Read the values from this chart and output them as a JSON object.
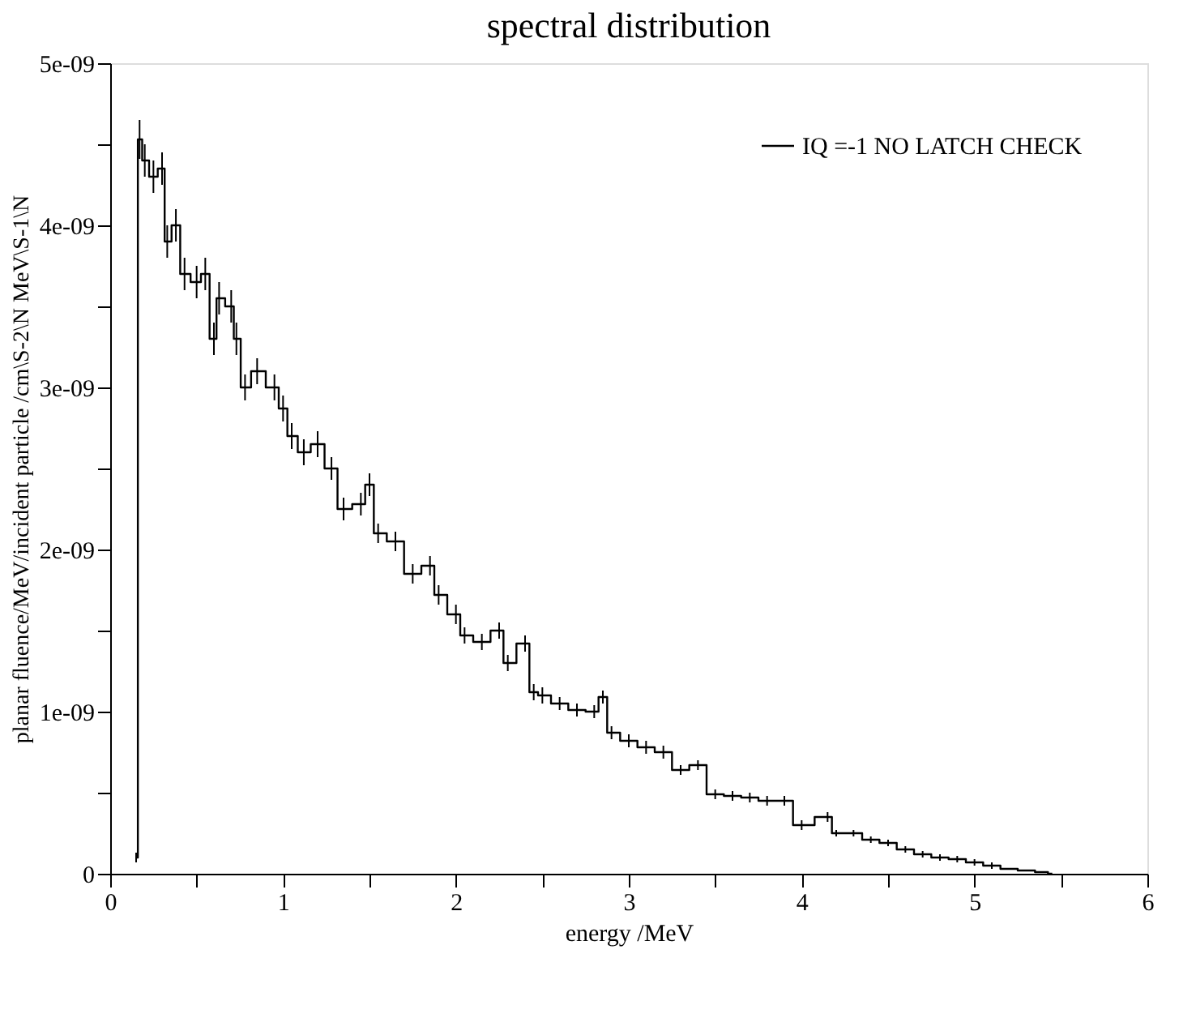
{
  "chart_data": {
    "type": "step",
    "title": "spectral distribution",
    "xlabel": "energy /MeV",
    "ylabel": "planar fluence/MeV/incident particle /cm\\S-2\\N MeV\\S-1\\N",
    "x": [
      0.15,
      0.17,
      0.2,
      0.25,
      0.3,
      0.33,
      0.38,
      0.43,
      0.5,
      0.55,
      0.6,
      0.63,
      0.7,
      0.73,
      0.78,
      0.85,
      0.95,
      1.0,
      1.05,
      1.12,
      1.2,
      1.28,
      1.35,
      1.45,
      1.5,
      1.55,
      1.65,
      1.75,
      1.85,
      1.9,
      2.0,
      2.05,
      2.15,
      2.25,
      2.3,
      2.4,
      2.45,
      2.5,
      2.6,
      2.7,
      2.8,
      2.85,
      2.9,
      3.0,
      3.1,
      3.2,
      3.3,
      3.4,
      3.5,
      3.6,
      3.7,
      3.8,
      3.9,
      4.0,
      4.15,
      4.2,
      4.3,
      4.4,
      4.5,
      4.6,
      4.7,
      4.8,
      4.9,
      5.0,
      5.1,
      5.2,
      5.3,
      5.4,
      5.45
    ],
    "series": [
      {
        "name": "IQ =-1 NO LATCH CHECK",
        "color": "#000000",
        "values": [
          1e-10,
          4.53e-09,
          4.4e-09,
          4.3e-09,
          4.35e-09,
          3.9e-09,
          4e-09,
          3.7e-09,
          3.65e-09,
          3.7e-09,
          3.3e-09,
          3.55e-09,
          3.5e-09,
          3.3e-09,
          3e-09,
          3.1e-09,
          3e-09,
          2.87e-09,
          2.7e-09,
          2.6e-09,
          2.65e-09,
          2.5e-09,
          2.25e-09,
          2.28e-09,
          2.4e-09,
          2.1e-09,
          2.05e-09,
          1.85e-09,
          1.9e-09,
          1.72e-09,
          1.6e-09,
          1.47e-09,
          1.43e-09,
          1.5e-09,
          1.3e-09,
          1.42e-09,
          1.12e-09,
          1.1e-09,
          1.05e-09,
          1.01e-09,
          1e-09,
          1.09e-09,
          8.7e-10,
          8.2e-10,
          7.8e-10,
          7.5e-10,
          6.4e-10,
          6.7e-10,
          4.9e-10,
          4.8e-10,
          4.7e-10,
          4.5e-10,
          4.5e-10,
          3e-10,
          3.5e-10,
          2.5e-10,
          2.5e-10,
          2.1e-10,
          1.9e-10,
          1.5e-10,
          1.2e-10,
          1e-10,
          9e-11,
          7e-11,
          5e-11,
          3e-11,
          2e-11,
          1e-11,
          0
        ],
        "errors": [
          3e-11,
          1.2e-10,
          1e-10,
          1e-10,
          1e-10,
          1e-10,
          1e-10,
          1e-10,
          1e-10,
          1e-10,
          1e-10,
          1e-10,
          1e-10,
          1e-10,
          8e-11,
          8e-11,
          8e-11,
          8e-11,
          8e-11,
          8e-11,
          8e-11,
          7e-11,
          7e-11,
          7e-11,
          7e-11,
          6e-11,
          6e-11,
          6e-11,
          6e-11,
          6e-11,
          6e-11,
          5e-11,
          5e-11,
          5e-11,
          5e-11,
          5e-11,
          5e-11,
          5e-11,
          4e-11,
          4e-11,
          4e-11,
          4e-11,
          4e-11,
          4e-11,
          4e-11,
          4e-11,
          3e-11,
          3e-11,
          3e-11,
          3e-11,
          3e-11,
          3e-11,
          3e-11,
          3e-11,
          3e-11,
          2e-11,
          2e-11,
          2e-11,
          2e-11,
          2e-11,
          2e-11,
          2e-11,
          2e-11,
          2e-11,
          2e-11,
          null,
          null,
          null,
          null
        ]
      }
    ],
    "xlim": [
      0,
      6
    ],
    "xticks": [
      0,
      {
        "value": 0.5,
        "label": null
      },
      1,
      {
        "value": 1.5,
        "label": null
      },
      2,
      {
        "value": 2.5,
        "label": null
      },
      3,
      {
        "value": 3.5,
        "label": null
      },
      4,
      {
        "value": 4.5,
        "label": null
      },
      5,
      {
        "value": 5.5,
        "label": null
      },
      6
    ],
    "ylim": [
      0,
      5e-09
    ],
    "yticks": [
      0,
      {
        "value": 5e-10,
        "label": null
      },
      {
        "value": 1e-09,
        "label": "1e-09"
      },
      {
        "value": 1.5e-09,
        "label": null
      },
      {
        "value": 2e-09,
        "label": "2e-09"
      },
      {
        "value": 2.5e-09,
        "label": null
      },
      {
        "value": 3e-09,
        "label": "3e-09"
      },
      {
        "value": 3.5e-09,
        "label": null
      },
      {
        "value": 4e-09,
        "label": "4e-09"
      },
      {
        "value": 4.5e-09,
        "label": null
      },
      {
        "value": 5e-09,
        "label": "5e-09"
      }
    ],
    "grid": false,
    "legend": "top right",
    "line_style": "solid"
  }
}
